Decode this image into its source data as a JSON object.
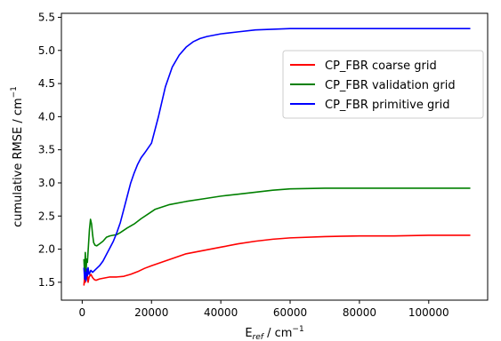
{
  "chart_data": {
    "type": "line",
    "title": "",
    "xlabel_main": "E",
    "xlabel_sub": "ref",
    "xlabel_unit": " / cm",
    "xlabel_exp": "−1",
    "ylabel_main": "cumulative RMSE / cm",
    "ylabel_exp": "−1",
    "xlim": [
      -6000,
      117000
    ],
    "ylim": [
      1.23,
      5.56
    ],
    "xticks": [
      0,
      20000,
      40000,
      60000,
      80000,
      100000
    ],
    "yticks": [
      1.5,
      2.0,
      2.5,
      3.0,
      3.5,
      4.0,
      4.5,
      5.0,
      5.5
    ],
    "legend_position": "upper-right",
    "grid": false,
    "series": [
      {
        "name": "CP_FBR coarse grid",
        "color": "#ff0000",
        "x": [
          500,
          700,
          900,
          1100,
          1300,
          1500,
          1700,
          2000,
          2500,
          3000,
          3500,
          4000,
          5000,
          6000,
          7000,
          8000,
          10000,
          12000,
          14000,
          16000,
          18000,
          20000,
          25000,
          30000,
          35000,
          40000,
          45000,
          50000,
          55000,
          60000,
          70000,
          80000,
          90000,
          100000,
          112000
        ],
        "y": [
          1.45,
          1.58,
          1.5,
          1.7,
          1.55,
          1.6,
          1.5,
          1.58,
          1.62,
          1.57,
          1.54,
          1.53,
          1.55,
          1.56,
          1.57,
          1.58,
          1.58,
          1.59,
          1.62,
          1.66,
          1.71,
          1.75,
          1.84,
          1.93,
          1.98,
          2.03,
          2.08,
          2.12,
          2.15,
          2.17,
          2.19,
          2.2,
          2.2,
          2.21,
          2.21
        ]
      },
      {
        "name": "CP_FBR validation grid",
        "color": "#008000",
        "x": [
          500,
          700,
          900,
          1100,
          1300,
          1500,
          1800,
          2100,
          2400,
          2700,
          3000,
          3300,
          3700,
          4200,
          5000,
          6000,
          7000,
          8000,
          9000,
          10000,
          11000,
          13000,
          15000,
          17000,
          19000,
          21000,
          25000,
          30000,
          35000,
          40000,
          45000,
          50000,
          55000,
          60000,
          70000,
          80000,
          90000,
          100000,
          112000
        ],
        "y": [
          1.85,
          1.6,
          1.95,
          1.65,
          1.85,
          1.8,
          2.05,
          2.3,
          2.45,
          2.38,
          2.22,
          2.1,
          2.06,
          2.05,
          2.08,
          2.12,
          2.18,
          2.2,
          2.21,
          2.22,
          2.25,
          2.32,
          2.38,
          2.46,
          2.53,
          2.6,
          2.67,
          2.72,
          2.76,
          2.8,
          2.83,
          2.86,
          2.89,
          2.91,
          2.92,
          2.92,
          2.92,
          2.92,
          2.92
        ]
      },
      {
        "name": "CP_FBR primitive grid",
        "color": "#0000ff",
        "x": [
          500,
          700,
          900,
          1100,
          1300,
          1500,
          1700,
          2000,
          2500,
          3000,
          4000,
          5000,
          6000,
          7000,
          8000,
          9000,
          10000,
          11000,
          12000,
          13000,
          14000,
          15000,
          16000,
          17000,
          18000,
          20000,
          22000,
          24000,
          26000,
          28000,
          30000,
          32000,
          34000,
          36000,
          38000,
          40000,
          45000,
          50000,
          55000,
          60000,
          70000,
          80000,
          90000,
          100000,
          112000
        ],
        "y": [
          1.72,
          1.55,
          1.65,
          1.52,
          1.7,
          1.6,
          1.72,
          1.62,
          1.68,
          1.65,
          1.7,
          1.75,
          1.82,
          1.92,
          2.02,
          2.12,
          2.25,
          2.4,
          2.6,
          2.8,
          3.0,
          3.15,
          3.28,
          3.38,
          3.45,
          3.6,
          4.0,
          4.45,
          4.75,
          4.93,
          5.05,
          5.13,
          5.18,
          5.21,
          5.23,
          5.25,
          5.28,
          5.31,
          5.32,
          5.33,
          5.33,
          5.33,
          5.33,
          5.33,
          5.33
        ]
      }
    ]
  }
}
